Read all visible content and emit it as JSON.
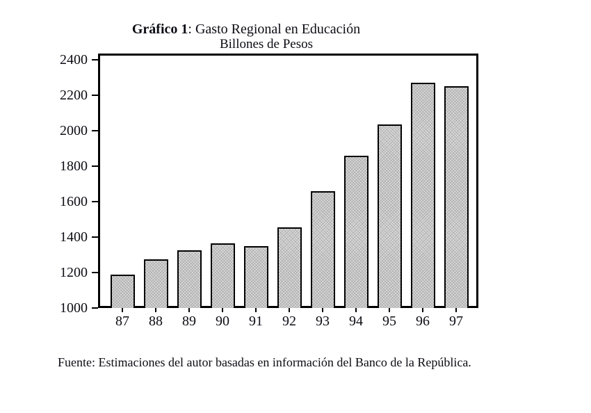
{
  "page": {
    "background": "#ffffff",
    "text_color": "#0c0c14"
  },
  "title": {
    "prefix": "Gráfico 1",
    "rest": ": Gasto Regional en Educación",
    "subtitle": "Billones de Pesos"
  },
  "source_note": "Fuente: Estimaciones del autor basadas en información del Banco de la República.",
  "chart_data": {
    "type": "bar",
    "title": "Gráfico 1: Gasto Regional en Educación",
    "subtitle": "Billones de Pesos",
    "xlabel": "",
    "ylabel": "Billones de Pesos",
    "categories": [
      "87",
      "88",
      "89",
      "90",
      "91",
      "92",
      "93",
      "94",
      "95",
      "96",
      "97"
    ],
    "values": [
      1190,
      1275,
      1325,
      1365,
      1350,
      1455,
      1660,
      1860,
      2035,
      2270,
      2250
    ],
    "ylim": [
      1000,
      2400
    ],
    "yticks": [
      1000,
      1200,
      1400,
      1600,
      1800,
      2000,
      2200,
      2400
    ],
    "ytick_interval": 200,
    "grid": false,
    "legend": null,
    "bar_fill": "#d9d9d9",
    "bar_border": "#000000",
    "frame_color": "#000000"
  }
}
